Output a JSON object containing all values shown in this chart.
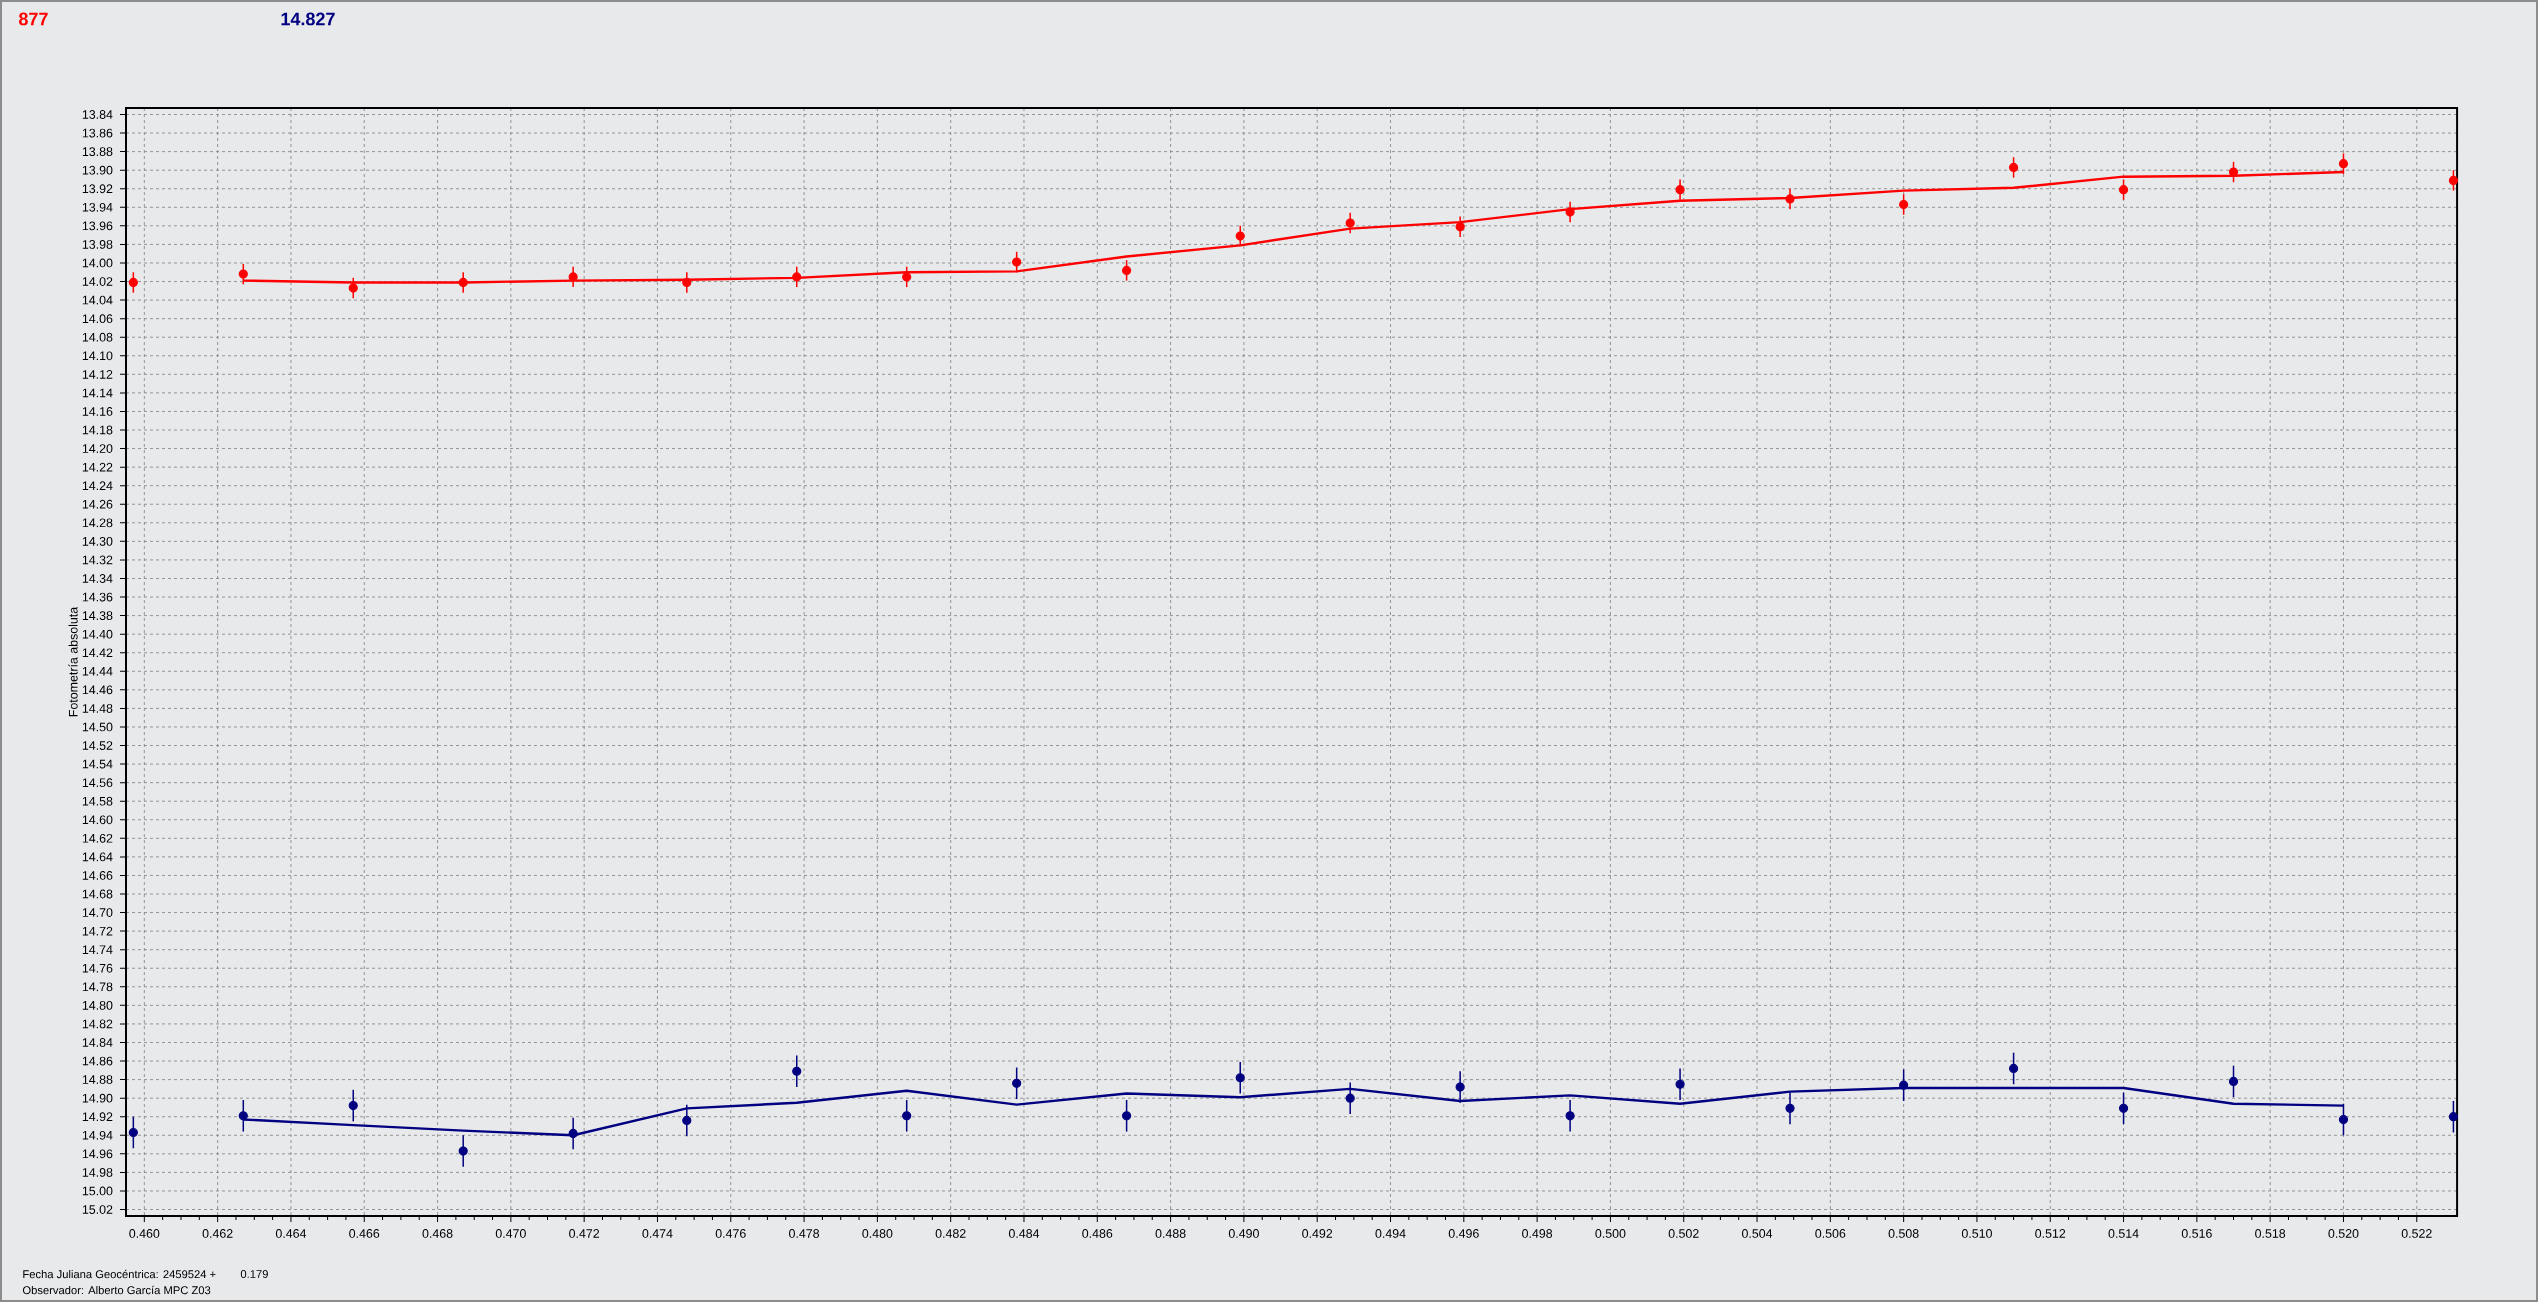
{
  "chart_data": {
    "type": "scatter",
    "ylabel": "Fotometría absoluta",
    "annotations": [
      "Fecha Juliana Geocéntrica: 2459524 +",
      "0.179",
      "Observador: Alberto García MPC Z03"
    ],
    "x": [
      0.4597,
      0.4627,
      0.4657,
      0.4687,
      0.4717,
      0.4748,
      0.4778,
      0.4808,
      0.4838,
      0.4868,
      0.4899,
      0.4929,
      0.4959,
      0.4989,
      0.5019,
      0.5049,
      0.508,
      0.511,
      0.514,
      0.517,
      0.52,
      0.523
    ],
    "series": [
      {
        "name": "877",
        "color": "#ff0000",
        "values": [
          14.021,
          14.012,
          14.027,
          14.021,
          14.015,
          14.021,
          14.015,
          14.015,
          13.999,
          14.008,
          13.971,
          13.957,
          13.961,
          13.945,
          13.921,
          13.931,
          13.937,
          13.897,
          13.921,
          13.902,
          13.893,
          13.911
        ],
        "errors": [
          0.011,
          0.011,
          0.011,
          0.011,
          0.011,
          0.011,
          0.011,
          0.011,
          0.011,
          0.011,
          0.011,
          0.011,
          0.011,
          0.011,
          0.011,
          0.011,
          0.011,
          0.011,
          0.011,
          0.011,
          0.011,
          0.011
        ]
      },
      {
        "type": "line",
        "marker": "none",
        "color": "#ff0000",
        "x": [
          0.4627,
          0.4657,
          0.4687,
          0.4717,
          0.4748,
          0.4778,
          0.4808,
          0.4838,
          0.4868,
          0.4899,
          0.4929,
          0.4959,
          0.4989,
          0.5019,
          0.5049,
          0.508,
          0.511,
          0.514,
          0.517,
          0.52
        ],
        "values": [
          14.019,
          14.021,
          14.021,
          14.019,
          14.018,
          14.016,
          14.01,
          14.009,
          13.993,
          13.981,
          13.963,
          13.956,
          13.942,
          13.933,
          13.93,
          13.922,
          13.919,
          13.907,
          13.906,
          13.902
        ]
      },
      {
        "name": "14.827",
        "color": "#000080",
        "values": [
          14.937,
          14.919,
          14.908,
          14.957,
          14.938,
          14.924,
          14.871,
          14.919,
          14.884,
          14.919,
          14.878,
          14.9,
          14.888,
          14.919,
          14.885,
          14.911,
          14.886,
          14.868,
          14.911,
          14.882,
          14.923,
          14.92
        ],
        "errors": [
          0.017,
          0.017,
          0.017,
          0.017,
          0.017,
          0.017,
          0.017,
          0.017,
          0.017,
          0.017,
          0.017,
          0.017,
          0.017,
          0.017,
          0.017,
          0.017,
          0.017,
          0.017,
          0.017,
          0.017,
          0.017,
          0.017
        ]
      },
      {
        "type": "line",
        "marker": "none",
        "color": "#000080",
        "x": [
          0.4627,
          0.4657,
          0.4687,
          0.4717,
          0.4748,
          0.4778,
          0.4808,
          0.4838,
          0.4868,
          0.4899,
          0.4929,
          0.4959,
          0.4989,
          0.5019,
          0.5049,
          0.508,
          0.511,
          0.514,
          0.517,
          0.52
        ],
        "values": [
          14.923,
          14.929,
          14.935,
          14.94,
          14.911,
          14.905,
          14.892,
          14.907,
          14.895,
          14.899,
          14.89,
          14.903,
          14.897,
          14.906,
          14.893,
          14.889,
          14.889,
          14.889,
          14.906,
          14.908
        ]
      }
    ],
    "xlim": [
      0.4595,
      0.5231
    ],
    "ylim": [
      15.027,
      13.833
    ],
    "xticks": [
      {
        "value": 0.46,
        "label": "0.460"
      },
      0.462,
      0.464,
      0.466,
      0.468,
      {
        "value": 0.47,
        "label": "0.470"
      },
      0.472,
      0.474,
      0.476,
      0.478,
      {
        "value": 0.48,
        "label": "0.480"
      },
      0.482,
      0.484,
      0.486,
      0.488,
      {
        "value": 0.49,
        "label": "0.490"
      },
      0.492,
      0.494,
      0.496,
      0.498,
      {
        "value": 0.5,
        "label": "0.500"
      },
      0.502,
      0.504,
      0.506,
      0.508,
      {
        "value": 0.51,
        "label": "0.510"
      },
      0.512,
      0.514,
      0.516,
      0.518,
      {
        "value": 0.52,
        "label": "0.520"
      },
      0.522
    ],
    "yticks": [
      13.84,
      13.86,
      13.88,
      {
        "value": 13.9,
        "label": "13.90"
      },
      13.92,
      13.94,
      13.96,
      13.98,
      {
        "value": 14,
        "label": "14.00"
      },
      14.02,
      14.04,
      14.06,
      14.08,
      {
        "value": 14.1,
        "label": "14.10"
      },
      14.12,
      14.14,
      14.16,
      14.18,
      {
        "value": 14.2,
        "label": "14.20"
      },
      14.22,
      14.24,
      14.26,
      14.28,
      {
        "value": 14.3,
        "label": "14.30"
      },
      14.32,
      14.34,
      14.36,
      14.38,
      {
        "value": 14.4,
        "label": "14.40"
      },
      14.42,
      14.44,
      14.46,
      14.48,
      {
        "value": 14.5,
        "label": "14.50"
      },
      14.52,
      14.54,
      14.56,
      14.58,
      {
        "value": 14.6,
        "label": "14.60"
      },
      14.62,
      14.64,
      14.66,
      14.68,
      {
        "value": 14.7,
        "label": "14.70"
      },
      14.72,
      14.74,
      14.76,
      14.78,
      {
        "value": 14.8,
        "label": "14.80"
      },
      14.82,
      14.84,
      14.86,
      14.88,
      {
        "value": 14.9,
        "label": "14.90"
      },
      14.92,
      14.94,
      14.96,
      14.98,
      {
        "value": 15,
        "label": "15.00"
      },
      15.02
    ],
    "grid": true,
    "marker": "circle"
  }
}
